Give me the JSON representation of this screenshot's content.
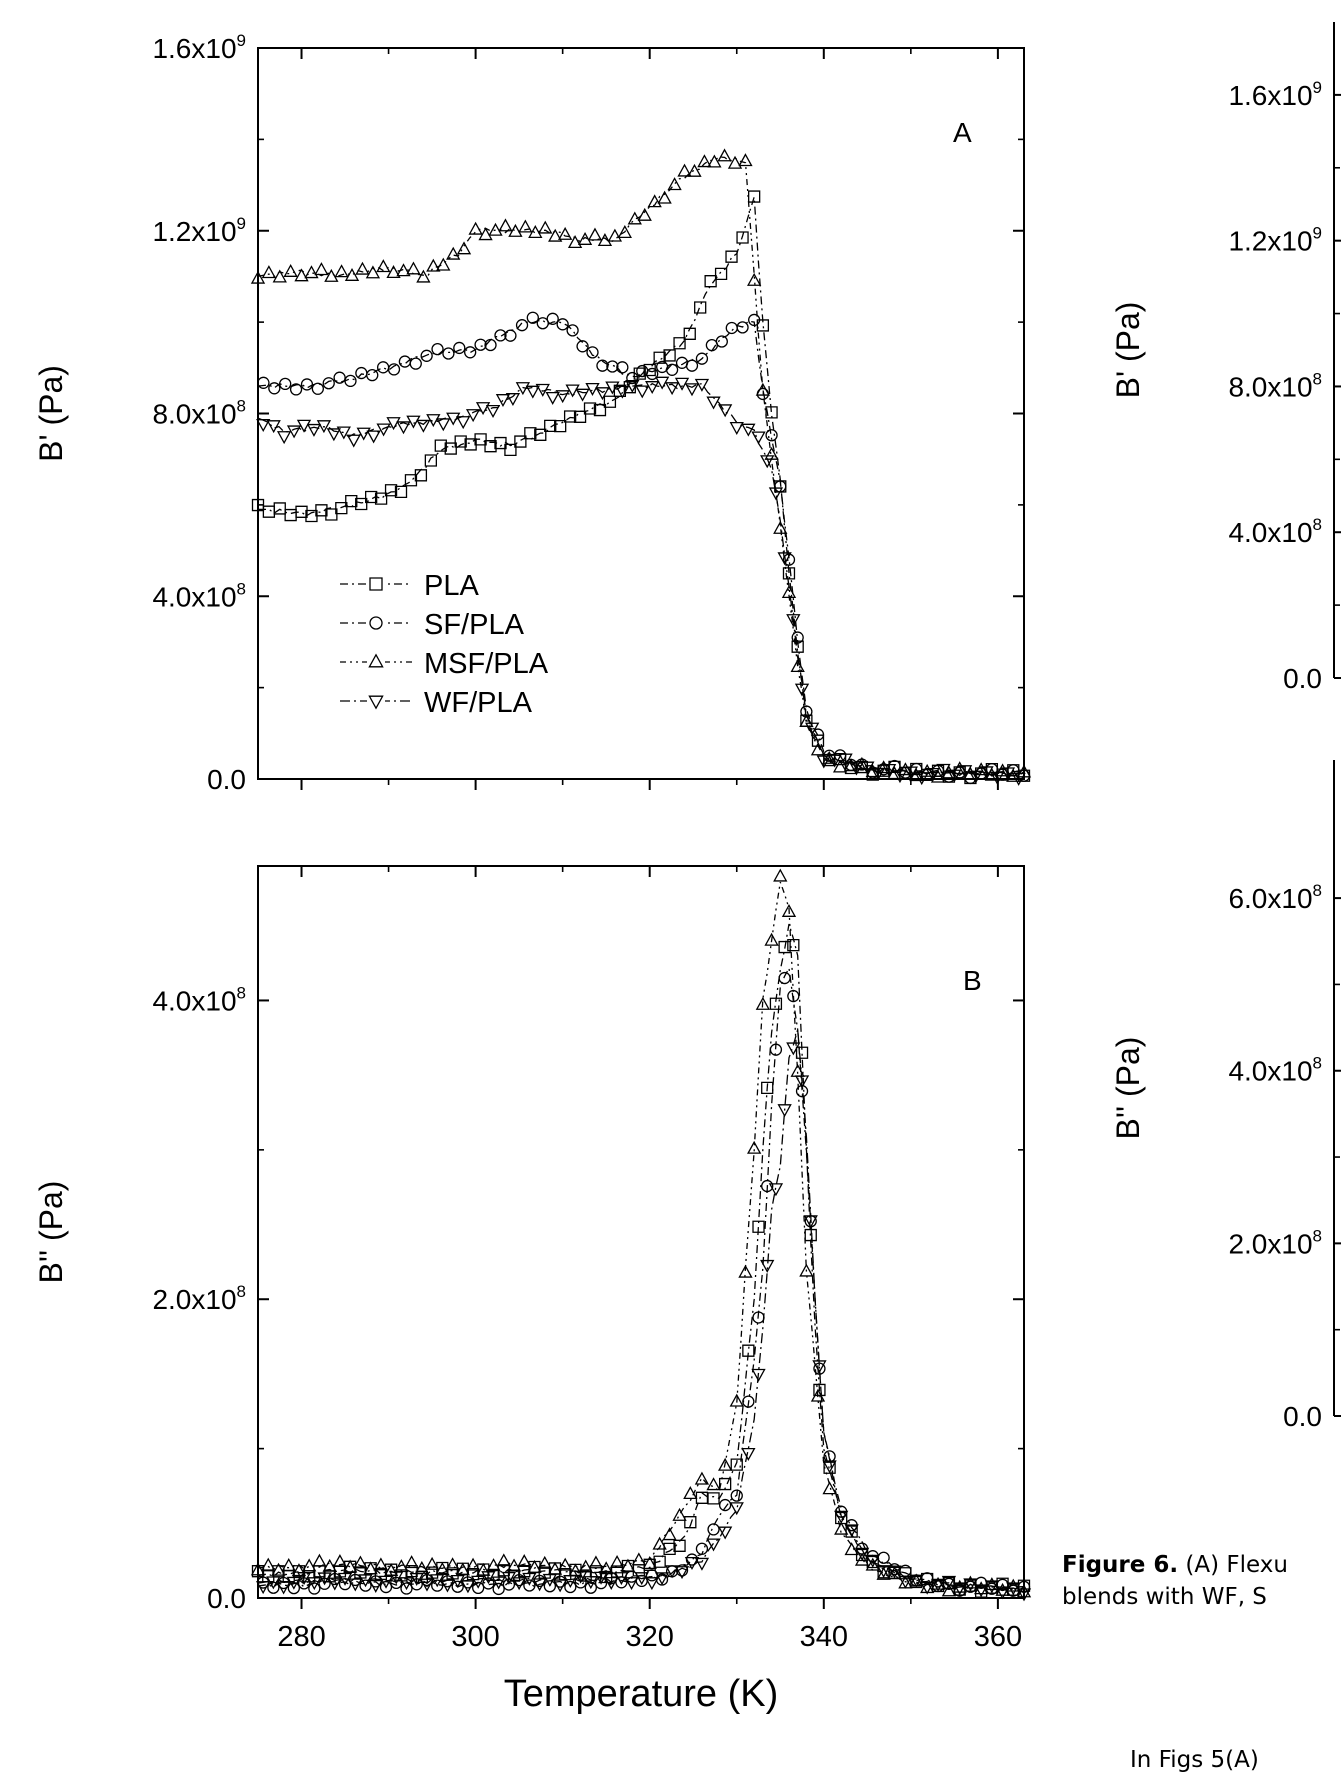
{
  "chart_data": [
    {
      "type": "scatter",
      "panel_label": "A",
      "xlim": [
        275,
        363
      ],
      "ylim": [
        0,
        1600000000.0
      ],
      "x_ticks": [
        280,
        300,
        320,
        340,
        360
      ],
      "y_tick_labels": [
        {
          "v": 0,
          "base": "0.0",
          "exp": ""
        },
        {
          "v": 400000000,
          "base": "4.0x10",
          "exp": "8"
        },
        {
          "v": 800000000,
          "base": "8.0x10",
          "exp": "8"
        },
        {
          "v": 1200000000,
          "base": "1.2x10",
          "exp": "9"
        },
        {
          "v": 1600000000,
          "base": "1.6x10",
          "exp": "9"
        }
      ],
      "ylabel": "B' (Pa)",
      "legend_position": "lower-left",
      "series": [
        {
          "name": "PLA",
          "marker": "square",
          "x": [
            275,
            280,
            284,
            288,
            292,
            296,
            300,
            304,
            308,
            312,
            316,
            320,
            324,
            327,
            330,
            332,
            333,
            334,
            335,
            336,
            337,
            338,
            340,
            345,
            350,
            355,
            363
          ],
          "y": [
            590000000,
            580000000,
            590000000,
            610000000,
            640000000,
            720000000,
            740000000,
            730000000,
            760000000,
            800000000,
            830000000,
            900000000,
            960000000,
            1080000000,
            1150000000,
            1270000000,
            1000000000,
            800000000,
            650000000,
            450000000,
            280000000,
            130000000,
            50000000,
            20000000,
            15000000,
            12000000,
            12000000
          ]
        },
        {
          "name": "SF/PLA",
          "marker": "circle",
          "x": [
            275,
            280,
            285,
            290,
            295,
            300,
            304,
            306,
            310,
            314,
            318,
            322,
            326,
            330,
            332,
            333,
            334,
            335,
            336,
            337,
            338,
            340,
            345,
            350,
            355,
            363
          ],
          "y": [
            860000000,
            860000000,
            870000000,
            900000000,
            930000000,
            940000000,
            980000000,
            1000000000,
            1000000000,
            920000000,
            880000000,
            900000000,
            920000000,
            990000000,
            1000000000,
            850000000,
            750000000,
            650000000,
            480000000,
            300000000,
            150000000,
            60000000,
            25000000,
            15000000,
            12000000,
            12000000
          ]
        },
        {
          "name": "MSF/PLA",
          "marker": "triangle-up",
          "x": [
            275,
            280,
            284,
            290,
            294,
            298,
            300,
            304,
            308,
            312,
            316,
            320,
            324,
            328,
            331,
            332,
            333,
            334,
            335,
            336,
            337,
            338,
            340,
            345,
            350,
            355,
            363
          ],
          "y": [
            1100000000,
            1110000000,
            1100000000,
            1120000000,
            1100000000,
            1150000000,
            1200000000,
            1200000000,
            1200000000,
            1180000000,
            1180000000,
            1250000000,
            1320000000,
            1360000000,
            1350000000,
            1100000000,
            850000000,
            700000000,
            550000000,
            400000000,
            250000000,
            120000000,
            45000000,
            18000000,
            14000000,
            12000000,
            12000000
          ]
        },
        {
          "name": "WF/PLA",
          "marker": "triangle-down",
          "x": [
            275,
            278,
            282,
            286,
            290,
            294,
            298,
            302,
            306,
            310,
            314,
            318,
            322,
            326,
            328,
            330,
            332,
            333,
            334,
            335,
            336,
            337,
            338,
            340,
            345,
            350,
            355,
            363
          ],
          "y": [
            790000000,
            760000000,
            770000000,
            750000000,
            770000000,
            780000000,
            790000000,
            810000000,
            860000000,
            840000000,
            850000000,
            860000000,
            860000000,
            860000000,
            820000000,
            780000000,
            760000000,
            720000000,
            680000000,
            560000000,
            420000000,
            270000000,
            140000000,
            50000000,
            20000000,
            14000000,
            12000000,
            12000000
          ]
        }
      ]
    },
    {
      "type": "scatter",
      "panel_label": "B",
      "xlim": [
        275,
        363
      ],
      "ylim": [
        0,
        490000000.0
      ],
      "x_ticks": [
        280,
        300,
        320,
        340,
        360
      ],
      "y_tick_labels": [
        {
          "v": 0,
          "base": "0.0",
          "exp": ""
        },
        {
          "v": 200000000,
          "base": "2.0x10",
          "exp": "8"
        },
        {
          "v": 400000000,
          "base": "4.0x10",
          "exp": "8"
        }
      ],
      "ylabel": "B'' (Pa)",
      "xlabel": "Temperature (K)",
      "series": [
        {
          "name": "PLA",
          "marker": "square",
          "x": [
            275,
            285,
            295,
            305,
            315,
            320,
            324,
            326,
            328,
            330,
            332,
            333,
            334,
            335,
            336,
            337,
            338,
            339,
            340,
            342,
            345,
            350,
            355,
            363
          ],
          "y": [
            15000000,
            18000000,
            17000000,
            18000000,
            17000000,
            20000000,
            40000000,
            70000000,
            65000000,
            90000000,
            200000000,
            300000000,
            380000000,
            420000000,
            450000000,
            430000000,
            300000000,
            180000000,
            100000000,
            55000000,
            25000000,
            12000000,
            8000000,
            6000000
          ]
        },
        {
          "name": "SF/PLA",
          "marker": "circle",
          "x": [
            275,
            285,
            295,
            305,
            315,
            322,
            326,
            328,
            330,
            332,
            333,
            334,
            335,
            336,
            337,
            338,
            339,
            340,
            342,
            345,
            350,
            355,
            363
          ],
          "y": [
            8000000,
            10000000,
            9000000,
            9000000,
            10000000,
            15000000,
            30000000,
            55000000,
            70000000,
            160000000,
            220000000,
            330000000,
            410000000,
            420000000,
            380000000,
            300000000,
            200000000,
            110000000,
            60000000,
            30000000,
            14000000,
            8000000,
            6000000
          ]
        },
        {
          "name": "MSF/PLA",
          "marker": "triangle-up",
          "x": [
            275,
            285,
            295,
            305,
            315,
            320,
            324,
            326,
            328,
            330,
            331,
            332,
            333,
            334,
            335,
            336,
            337,
            338,
            340,
            342,
            345,
            350,
            355,
            363
          ],
          "y": [
            20000000,
            22000000,
            20000000,
            22000000,
            20000000,
            25000000,
            60000000,
            80000000,
            70000000,
            130000000,
            220000000,
            300000000,
            400000000,
            440000000,
            480000000,
            460000000,
            350000000,
            220000000,
            90000000,
            45000000,
            20000000,
            10000000,
            7000000,
            6000000
          ]
        },
        {
          "name": "WF/PLA",
          "marker": "triangle-down",
          "x": [
            275,
            285,
            295,
            305,
            315,
            322,
            326,
            328,
            330,
            332,
            333,
            334,
            335,
            336,
            337,
            338,
            339,
            340,
            342,
            345,
            350,
            355,
            363
          ],
          "y": [
            10000000,
            12000000,
            11000000,
            12000000,
            12000000,
            14000000,
            25000000,
            40000000,
            60000000,
            120000000,
            180000000,
            260000000,
            290000000,
            360000000,
            380000000,
            310000000,
            200000000,
            110000000,
            55000000,
            25000000,
            12000000,
            8000000,
            6000000
          ]
        }
      ]
    },
    {
      "type": "scatter",
      "cropped": true,
      "ylim": [
        0,
        1800000000.0
      ],
      "y_tick_labels": [
        {
          "v": 0,
          "base": "0.0",
          "exp": ""
        },
        {
          "v": 400000000,
          "base": "4.0x10",
          "exp": "8"
        },
        {
          "v": 800000000,
          "base": "8.0x10",
          "exp": "8"
        },
        {
          "v": 1200000000,
          "base": "1.2x10",
          "exp": "9"
        },
        {
          "v": 1600000000,
          "base": "1.6x10",
          "exp": "9"
        }
      ],
      "ylabel": "B' (Pa)"
    },
    {
      "type": "scatter",
      "cropped": true,
      "ylim": [
        0,
        760000000.0
      ],
      "y_tick_labels": [
        {
          "v": 0,
          "base": "0.0",
          "exp": ""
        },
        {
          "v": 200000000,
          "base": "2.0x10",
          "exp": "8"
        },
        {
          "v": 400000000,
          "base": "4.0x10",
          "exp": "8"
        },
        {
          "v": 600000000,
          "base": "6.0x10",
          "exp": "8"
        }
      ],
      "ylabel": "B'' (Pa)"
    }
  ],
  "caption": {
    "lead": "Figure 6.",
    "line1_rest": " (A) Flexu",
    "line2": "blends with WF, S"
  },
  "footer_fragment": "In  Figs 5(A)"
}
